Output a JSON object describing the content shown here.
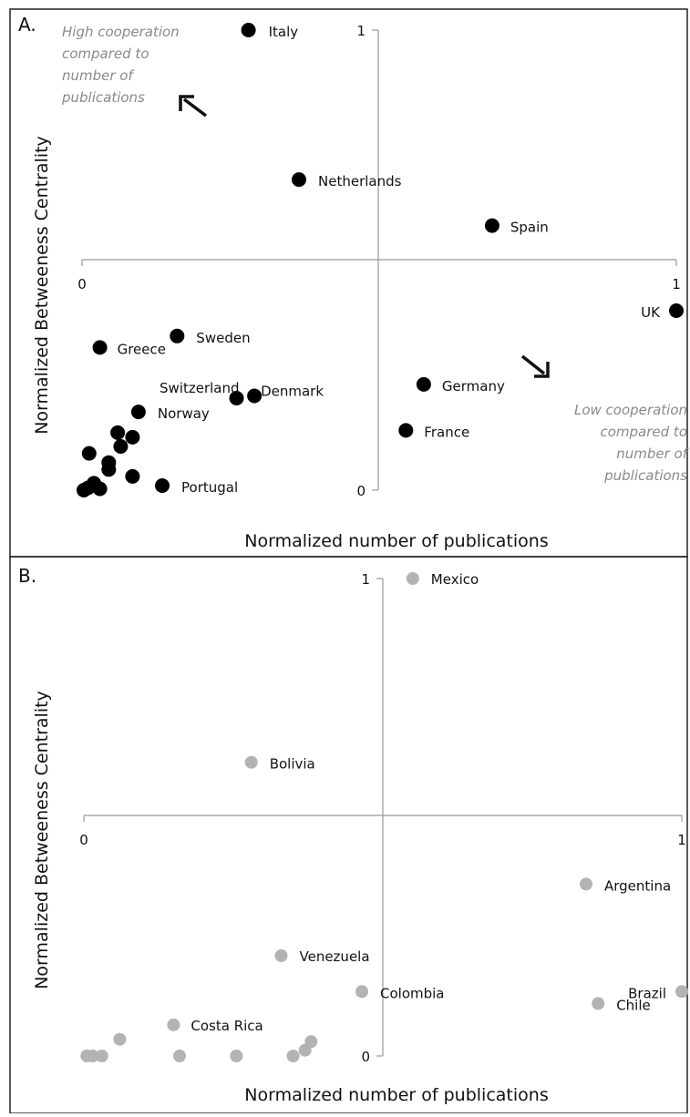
{
  "chart_data": [
    {
      "panel_label": "A.",
      "type": "scatter",
      "xlabel": "Normalized number of publications",
      "ylabel": "Normalized Betweeness Centrality",
      "xlim": [
        0,
        1
      ],
      "ylim": [
        0,
        1
      ],
      "x_tick_labels": [
        "0",
        "1"
      ],
      "y_tick_labels": [
        "0",
        "1"
      ],
      "marker_color": "#000000",
      "annotations": [
        {
          "text_lines": [
            "High cooperation",
            "compared to",
            "number of",
            "publications"
          ],
          "arrow": "up-left"
        },
        {
          "text_lines": [
            "Low cooperation",
            "compared to",
            "number of",
            "publications"
          ],
          "arrow": "down-right"
        }
      ],
      "points": [
        {
          "label": "Italy",
          "x": 0.28,
          "y": 1.0
        },
        {
          "label": "Netherlands",
          "x": 0.365,
          "y": 0.675
        },
        {
          "label": "Spain",
          "x": 0.69,
          "y": 0.575
        },
        {
          "label": "UK",
          "x": 1.0,
          "y": 0.39
        },
        {
          "label": "Greece",
          "x": 0.03,
          "y": 0.31
        },
        {
          "label": "Sweden",
          "x": 0.16,
          "y": 0.335
        },
        {
          "label": "Switzerland",
          "x": 0.26,
          "y": 0.2
        },
        {
          "label": "Denmark",
          "x": 0.29,
          "y": 0.205
        },
        {
          "label": "Germany",
          "x": 0.575,
          "y": 0.23
        },
        {
          "label": "Norway",
          "x": 0.095,
          "y": 0.17
        },
        {
          "label": "France",
          "x": 0.545,
          "y": 0.13
        },
        {
          "label": "Portugal",
          "x": 0.135,
          "y": 0.01
        },
        {
          "label": "",
          "x": 0.06,
          "y": 0.125
        },
        {
          "label": "",
          "x": 0.085,
          "y": 0.115
        },
        {
          "label": "",
          "x": 0.065,
          "y": 0.095
        },
        {
          "label": "",
          "x": 0.012,
          "y": 0.08
        },
        {
          "label": "",
          "x": 0.045,
          "y": 0.06
        },
        {
          "label": "",
          "x": 0.045,
          "y": 0.045
        },
        {
          "label": "",
          "x": 0.085,
          "y": 0.03
        },
        {
          "label": "",
          "x": 0.02,
          "y": 0.015
        },
        {
          "label": "",
          "x": 0.01,
          "y": 0.005
        },
        {
          "label": "",
          "x": 0.003,
          "y": 0.0
        },
        {
          "label": "",
          "x": 0.03,
          "y": 0.003
        }
      ]
    },
    {
      "panel_label": "B.",
      "type": "scatter",
      "xlabel": "Normalized number of publications",
      "ylabel": "Normalized Betweeness Centrality",
      "xlim": [
        0,
        1
      ],
      "ylim": [
        0,
        1
      ],
      "x_tick_labels": [
        "0",
        "1"
      ],
      "y_tick_labels": [
        "0",
        "1"
      ],
      "marker_color": "#b3b3b3",
      "points": [
        {
          "label": "Mexico",
          "x": 0.55,
          "y": 1.0
        },
        {
          "label": "Bolivia",
          "x": 0.28,
          "y": 0.615
        },
        {
          "label": "Argentina",
          "x": 0.84,
          "y": 0.36
        },
        {
          "label": "Venezuela",
          "x": 0.33,
          "y": 0.21
        },
        {
          "label": "Colombia",
          "x": 0.465,
          "y": 0.135
        },
        {
          "label": "Chile",
          "x": 0.86,
          "y": 0.11
        },
        {
          "label": "Brazil",
          "x": 1.0,
          "y": 0.135
        },
        {
          "label": "Costa Rica",
          "x": 0.15,
          "y": 0.065
        },
        {
          "label": "",
          "x": 0.06,
          "y": 0.035
        },
        {
          "label": "",
          "x": 0.38,
          "y": 0.03
        },
        {
          "label": "",
          "x": 0.37,
          "y": 0.012
        },
        {
          "label": "",
          "x": 0.005,
          "y": 0.0
        },
        {
          "label": "",
          "x": 0.015,
          "y": 0.0
        },
        {
          "label": "",
          "x": 0.03,
          "y": 0.0
        },
        {
          "label": "",
          "x": 0.16,
          "y": 0.0
        },
        {
          "label": "",
          "x": 0.255,
          "y": 0.0
        },
        {
          "label": "",
          "x": 0.35,
          "y": 0.0
        }
      ]
    }
  ]
}
